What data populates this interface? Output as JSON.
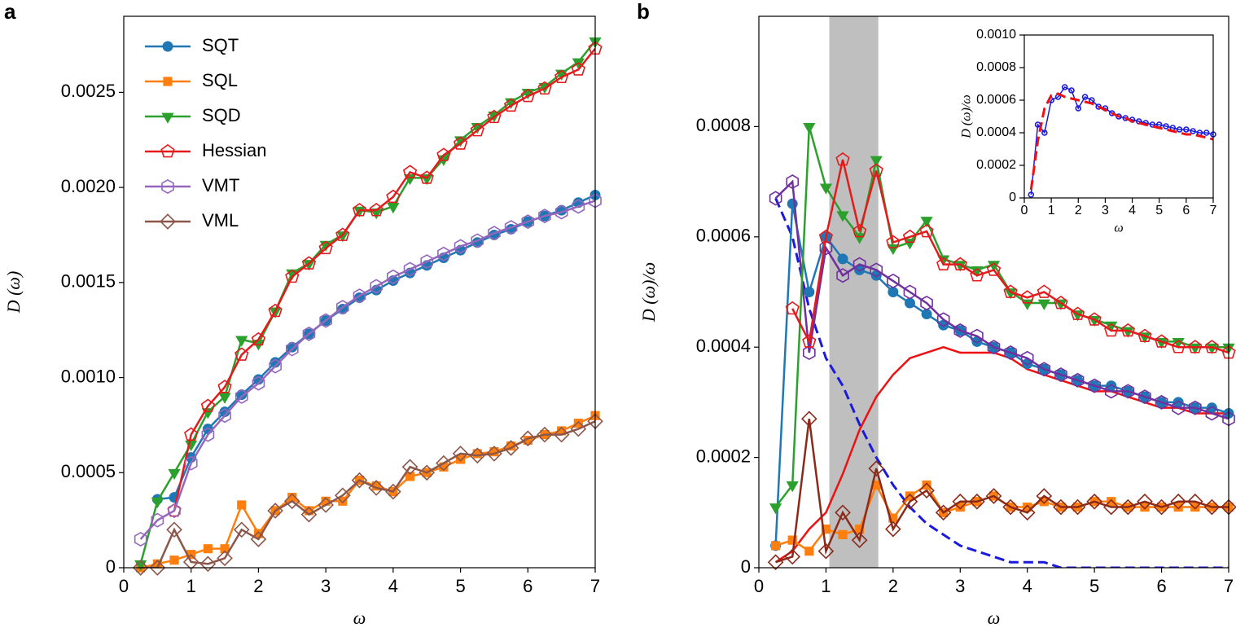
{
  "chart_data": [
    {
      "type": "line",
      "panel_label": "a",
      "xlabel": "ω",
      "ylabel": "D (ω)",
      "legend": "upper left",
      "x": [
        0.25,
        0.5,
        0.75,
        1.0,
        1.25,
        1.5,
        1.75,
        2.0,
        2.25,
        2.5,
        2.75,
        3.0,
        3.25,
        3.5,
        3.75,
        4.0,
        4.25,
        4.5,
        4.75,
        5.0,
        5.25,
        5.5,
        5.75,
        6.0,
        6.25,
        6.5,
        6.75,
        7.0
      ],
      "xlim": [
        0,
        7
      ],
      "xticks": [
        0,
        1,
        2,
        3,
        4,
        5,
        6,
        7
      ],
      "ylim": [
        0,
        0.0029
      ],
      "yticks": [
        0,
        0.0005,
        {
          "value": 0.001,
          "label": "0.0010"
        },
        0.0015,
        {
          "value": 0.002,
          "label": "0.0020"
        },
        0.0025
      ],
      "series": [
        {
          "name": "SQT",
          "color": "#1f77b4",
          "marker": "circle",
          "filled": true,
          "values": [
            null,
            0.00036,
            0.00037,
            0.00058,
            0.00073,
            0.00082,
            0.00091,
            0.00099,
            0.00108,
            0.00116,
            0.00123,
            0.0013,
            0.00136,
            0.00142,
            0.00146,
            0.00151,
            0.00155,
            0.00159,
            0.00163,
            0.00167,
            0.00171,
            0.00175,
            0.00178,
            0.00182,
            0.00185,
            0.00188,
            0.00192,
            0.00196
          ]
        },
        {
          "name": "SQL",
          "color": "#ff7f0e",
          "marker": "square",
          "filled": true,
          "values": [
            0.0,
            2e-05,
            4e-05,
            7e-05,
            0.0001,
            0.0001,
            0.00033,
            0.00018,
            0.0003,
            0.00037,
            0.0003,
            0.00035,
            0.00035,
            0.00046,
            0.00043,
            0.0004,
            0.00048,
            0.0005,
            0.00053,
            0.00057,
            0.0006,
            0.00061,
            0.00064,
            0.00067,
            0.0007,
            0.00072,
            0.00076,
            0.0008
          ]
        },
        {
          "name": "SQD",
          "color": "#2ca02c",
          "marker": "triangle-down",
          "filled": true,
          "values": [
            2e-05,
            0.00035,
            0.0005,
            0.00065,
            0.00082,
            0.0009,
            0.0012,
            0.00118,
            0.00135,
            0.00155,
            0.0016,
            0.0017,
            0.00175,
            0.00188,
            0.00187,
            0.0019,
            0.00205,
            0.00205,
            0.00215,
            0.00225,
            0.00232,
            0.00238,
            0.00245,
            0.0025,
            0.00253,
            0.0026,
            0.00266,
            0.00277
          ]
        },
        {
          "name": "Hessian",
          "color": "#e41a1c",
          "marker": "pentagon",
          "filled": false,
          "values": [
            null,
            null,
            0.0003,
            0.0007,
            0.00085,
            0.00095,
            0.00112,
            0.0012,
            0.00135,
            0.00153,
            0.0016,
            0.00168,
            0.00175,
            0.00188,
            0.00188,
            0.00195,
            0.00208,
            0.00205,
            0.00217,
            0.00223,
            0.0023,
            0.00237,
            0.00243,
            0.00248,
            0.00252,
            0.00258,
            0.00262,
            0.00273
          ]
        },
        {
          "name": "VMT",
          "color": "#9467bd",
          "marker": "hexagon",
          "filled": false,
          "values": [
            0.00015,
            0.00025,
            0.0003,
            0.00055,
            0.0007,
            0.0008,
            0.0009,
            0.00097,
            0.00106,
            0.00115,
            0.00123,
            0.0013,
            0.00137,
            0.00143,
            0.00148,
            0.00153,
            0.00157,
            0.00161,
            0.00165,
            0.00169,
            0.00172,
            0.00176,
            0.00179,
            0.00182,
            0.00185,
            0.00187,
            0.0019,
            0.00193
          ]
        },
        {
          "name": "VML",
          "color": "#8c564b",
          "marker": "diamond",
          "filled": false,
          "values": [
            0.0,
            0.0,
            0.0002,
            3e-05,
            2e-05,
            5e-05,
            0.0002,
            0.00015,
            0.0003,
            0.00035,
            0.00028,
            0.00033,
            0.00038,
            0.00046,
            0.00042,
            0.0004,
            0.00053,
            0.0005,
            0.00055,
            0.0006,
            0.00059,
            0.0006,
            0.00063,
            0.00068,
            0.0007,
            0.0007,
            0.00073,
            0.00077
          ]
        }
      ]
    },
    {
      "type": "line",
      "panel_label": "b",
      "xlabel": "ω",
      "ylabel": "D (ω)/ω",
      "shaded_region": [
        1.05,
        1.78
      ],
      "shade_color": "#bfbfbf",
      "x": [
        0.25,
        0.5,
        0.75,
        1.0,
        1.25,
        1.5,
        1.75,
        2.0,
        2.25,
        2.5,
        2.75,
        3.0,
        3.25,
        3.5,
        3.75,
        4.0,
        4.25,
        4.5,
        4.75,
        5.0,
        5.25,
        5.5,
        5.75,
        6.0,
        6.25,
        6.5,
        6.75,
        7.0
      ],
      "xlim": [
        0,
        7
      ],
      "xticks": [
        0,
        1,
        2,
        3,
        4,
        5,
        6,
        7
      ],
      "ylim": [
        0,
        0.001
      ],
      "yticks": [
        0,
        0.0002,
        0.0004,
        0.0006,
        0.0008
      ],
      "series": [
        {
          "color": "#1a1adf",
          "marker": "none",
          "dashed": true,
          "values": [
            0.00067,
            0.0006,
            0.00047,
            0.00038,
            0.00033,
            0.00026,
            0.0002,
            0.00015,
            0.00011,
            8e-05,
            6e-05,
            4e-05,
            3e-05,
            2e-05,
            1e-05,
            1e-05,
            1e-05,
            0,
            0,
            0,
            0,
            0,
            0,
            0,
            0,
            0,
            0,
            0
          ]
        },
        {
          "color": "#ee1111",
          "marker": "none",
          "dashed": false,
          "values": [
            1e-05,
            3e-05,
            7e-05,
            0.0001,
            0.00017,
            0.00025,
            0.00031,
            0.00035,
            0.00038,
            0.00039,
            0.0004,
            0.00039,
            0.00039,
            0.00039,
            0.00038,
            0.00036,
            0.00035,
            0.00034,
            0.00033,
            0.00032,
            0.00032,
            0.00031,
            0.0003,
            0.00029,
            0.00029,
            0.00028,
            0.00028,
            0.00028
          ]
        },
        {
          "color": "#1f77b4",
          "marker": "circle",
          "filled": true,
          "values": [
            4e-05,
            0.00066,
            0.0005,
            0.0006,
            0.00056,
            0.00054,
            0.00053,
            0.0005,
            0.00048,
            0.00046,
            0.00044,
            0.00043,
            0.00041,
            0.0004,
            0.00039,
            0.00037,
            0.00036,
            0.00035,
            0.00034,
            0.00033,
            0.00033,
            0.00032,
            0.00031,
            0.0003,
            0.0003,
            0.00029,
            0.00029,
            0.00028
          ]
        },
        {
          "color": "#7030a0",
          "marker": "hexagon",
          "filled": false,
          "values": [
            0.00067,
            0.0007,
            0.00039,
            0.00058,
            0.00053,
            0.00055,
            0.00054,
            0.00052,
            0.0005,
            0.00048,
            0.00045,
            0.00043,
            0.00042,
            0.0004,
            0.00039,
            0.00038,
            0.00036,
            0.00035,
            0.00034,
            0.00033,
            0.00032,
            0.00032,
            0.00031,
            0.0003,
            0.00029,
            0.00029,
            0.00028,
            0.00027
          ]
        },
        {
          "color": "#2ca02c",
          "marker": "triangle-down",
          "filled": true,
          "values": [
            0.00011,
            0.00015,
            0.0008,
            0.00069,
            0.00064,
            0.0006,
            0.00074,
            0.00058,
            0.00059,
            0.00063,
            0.00056,
            0.00055,
            0.00054,
            0.00055,
            0.0005,
            0.00048,
            0.00048,
            0.00048,
            0.00046,
            0.00045,
            0.00044,
            0.00043,
            0.00042,
            0.00041,
            0.00041,
            0.0004,
            0.0004,
            0.0004
          ]
        },
        {
          "color": "#e41a1c",
          "marker": "pentagon",
          "filled": false,
          "values": [
            null,
            0.00047,
            0.00041,
            0.0006,
            0.00074,
            0.00061,
            0.00072,
            0.00059,
            0.0006,
            0.00061,
            0.00055,
            0.00055,
            0.00053,
            0.00054,
            0.0005,
            0.00049,
            0.0005,
            0.00048,
            0.00046,
            0.00045,
            0.00043,
            0.00043,
            0.00042,
            0.00041,
            0.0004,
            0.0004,
            0.0004,
            0.00039
          ]
        },
        {
          "color": "#ff7f0e",
          "marker": "square",
          "filled": true,
          "values": [
            4e-05,
            5e-05,
            3e-05,
            7e-05,
            6e-05,
            7e-05,
            0.00015,
            9e-05,
            0.00013,
            0.00015,
            0.0001,
            0.00011,
            0.00012,
            0.00013,
            0.00011,
            0.00011,
            0.00012,
            0.00011,
            0.00011,
            0.00012,
            0.00012,
            0.00011,
            0.00011,
            0.00011,
            0.00011,
            0.00011,
            0.00011,
            0.00011
          ]
        },
        {
          "color": "#8b2a1a",
          "marker": "diamond",
          "filled": false,
          "values": [
            1e-05,
            2e-05,
            0.00027,
            3e-05,
            0.0001,
            5e-05,
            0.00018,
            7e-05,
            0.00012,
            0.00014,
            0.0001,
            0.00012,
            0.00012,
            0.00013,
            0.00011,
            0.0001,
            0.00013,
            0.00011,
            0.00011,
            0.00012,
            0.00011,
            0.00011,
            0.00012,
            0.00011,
            0.00012,
            0.00012,
            0.00011,
            0.00011
          ]
        }
      ]
    },
    {
      "type": "line",
      "xlabel": "ω",
      "ylabel": "D (ω)/ω",
      "x": [
        0.25,
        0.5,
        0.75,
        1.0,
        1.25,
        1.5,
        1.75,
        2.0,
        2.25,
        2.5,
        2.75,
        3.0,
        3.25,
        3.5,
        3.75,
        4.0,
        4.25,
        4.5,
        4.75,
        5.0,
        5.25,
        5.5,
        5.75,
        6.0,
        6.25,
        6.5,
        6.75,
        7.0
      ],
      "xlim": [
        0,
        7
      ],
      "xticks": [
        0,
        1,
        2,
        3,
        4,
        5,
        6,
        7
      ],
      "ylim": [
        0,
        0.001
      ],
      "yticks": [
        0,
        0.0002,
        0.0004,
        0.0006,
        0.0008,
        {
          "value": 0.001,
          "label": "0.0010"
        }
      ],
      "series": [
        {
          "color": "#1a1adf",
          "marker": "small-circle",
          "filled": false,
          "values": [
            2e-05,
            0.00045,
            0.0004,
            0.0006,
            0.00062,
            0.00068,
            0.00066,
            0.00055,
            0.00062,
            0.0006,
            0.00056,
            0.00055,
            0.00052,
            0.0005,
            0.00049,
            0.00048,
            0.00047,
            0.00046,
            0.00045,
            0.00045,
            0.00044,
            0.00043,
            0.00042,
            0.00042,
            0.00041,
            0.0004,
            0.0004,
            0.00039
          ]
        },
        {
          "color": "#ee1111",
          "marker": "none",
          "dashed": true,
          "values": [
            5e-05,
            0.00035,
            0.00055,
            0.00063,
            0.00064,
            0.00062,
            0.00061,
            0.0006,
            0.00059,
            0.00058,
            0.00056,
            0.00054,
            0.00052,
            0.0005,
            0.00049,
            0.00047,
            0.00046,
            0.00045,
            0.00044,
            0.00043,
            0.00042,
            0.00041,
            0.0004,
            0.00039,
            0.00039,
            0.00038,
            0.00037,
            0.00036
          ]
        }
      ]
    }
  ]
}
